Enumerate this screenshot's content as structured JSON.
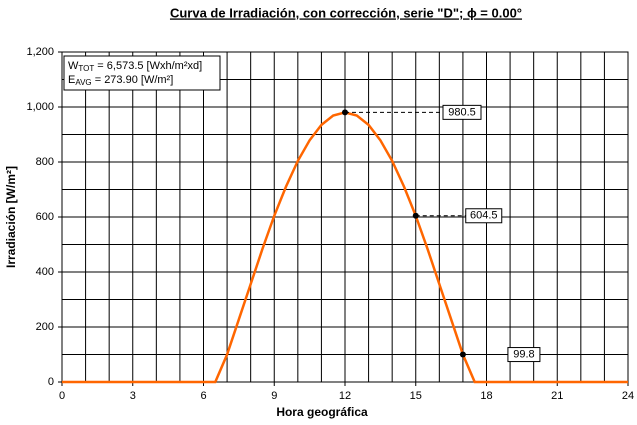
{
  "chart_data": {
    "type": "line",
    "title": "Curva de Irradiación, con corrección, serie \"D\"; ϕ = 0.00°",
    "x_label": "Hora geográfica",
    "y_label": "Irradiación [W/m²]",
    "xlim": [
      0,
      24
    ],
    "xticks": [
      0,
      3,
      6,
      9,
      12,
      15,
      18,
      21,
      24
    ],
    "ylim": [
      0,
      1200
    ],
    "yticks": [
      0,
      200,
      400,
      600,
      800,
      {
        "value": 1000,
        "label": "1,000"
      },
      {
        "value": 1200,
        "label": "1,200"
      }
    ],
    "grid": true,
    "grid_x_step": 1,
    "grid_y_step": 100,
    "series": [
      {
        "name": "Irradiación",
        "color": "#ff6600",
        "x": [
          0,
          6,
          6.5,
          7,
          7.5,
          8,
          8.5,
          9,
          9.5,
          10,
          10.5,
          11,
          11.5,
          12,
          12.5,
          13,
          13.5,
          14,
          14.5,
          15,
          15.5,
          16,
          16.5,
          17,
          17.5,
          18,
          24
        ],
        "values": [
          0,
          0,
          0,
          99.8,
          228,
          356,
          484,
          604.5,
          711,
          804,
          879,
          935,
          969,
          980.5,
          969,
          935,
          879,
          804,
          711,
          604.5,
          484,
          356,
          228,
          99.8,
          0,
          0,
          0
        ]
      }
    ],
    "points": {
      "color": "#000000",
      "x": [
        12,
        15,
        17
      ],
      "values": [
        980.5,
        604.5,
        99.8
      ]
    },
    "annotation": {
      "line1": [
        "W",
        "TOT",
        " = 6,573.5 [Wxh/m²xd]"
      ],
      "line2": [
        "E",
        "AVG",
        " = 273.90 [W/m²]"
      ]
    }
  }
}
